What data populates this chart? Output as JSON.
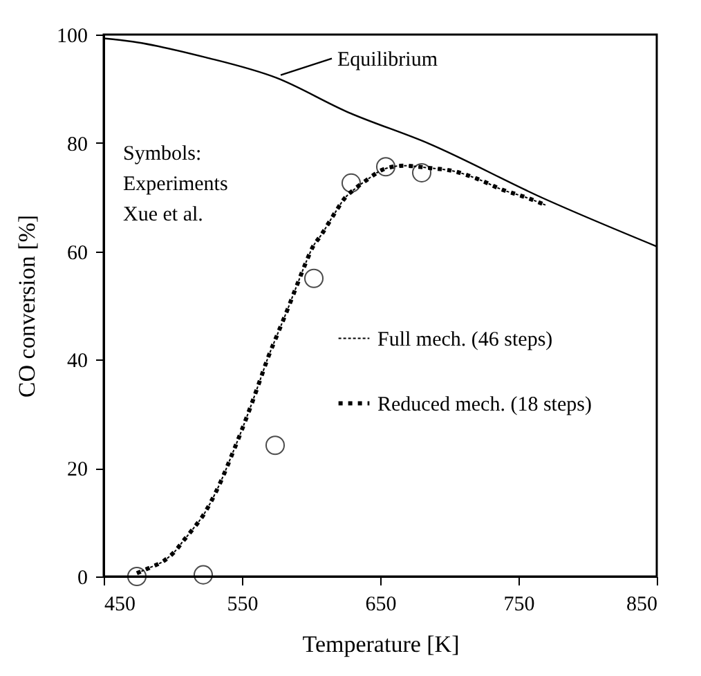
{
  "chart_data": {
    "type": "line",
    "xlabel": "Temperature [K]",
    "ylabel": "CO conversion [%]",
    "xlim": [
      450,
      850
    ],
    "ylim": [
      0,
      100
    ],
    "xticks": [
      450,
      550,
      650,
      750,
      850
    ],
    "yticks": [
      0,
      20,
      40,
      60,
      80,
      100
    ],
    "grid": false,
    "legend": "right",
    "annotations": [
      {
        "text": "Equilibrium",
        "x": 575,
        "y": 92
      },
      "Symbols:\nExperiments\nXue et al."
    ],
    "series": [
      {
        "color": "#000000",
        "line_style": "solid",
        "x": [
          450,
          471,
          523.5,
          575,
          625.5,
          685,
          767,
          850
        ],
        "values": [
          99.3,
          98.7,
          95.8,
          92,
          85.8,
          79.9,
          69.9,
          60.9
        ]
      },
      {
        "name": "Full mech. (46 steps)",
        "color": "#000000",
        "line_style": "dotted",
        "x": [
          474,
          484,
          493,
          501,
          508,
          515,
          522,
          527,
          535,
          542.5,
          550,
          556.5,
          562.5,
          569,
          576,
          583,
          590,
          597,
          601,
          607,
          618,
          624,
          632,
          641,
          652,
          667,
          685,
          703,
          721,
          738,
          756,
          770
        ],
        "values": [
          0.6,
          1.7,
          2.8,
          4.5,
          6.7,
          8.9,
          11.3,
          13.5,
          17.7,
          22.3,
          27.1,
          31.5,
          35.8,
          40.5,
          44.9,
          49.3,
          53.9,
          58.4,
          60.7,
          62.9,
          67.4,
          69.7,
          71.6,
          73.3,
          75.1,
          75.8,
          75.4,
          74.8,
          73.3,
          71.4,
          69.9,
          68.5
        ]
      },
      {
        "name": "Reduced mech. (18 steps)",
        "color": "#000000",
        "line_style": "dashed",
        "x": [
          474,
          484,
          493,
          501,
          508,
          515,
          522,
          527,
          535,
          542.5,
          550,
          556.5,
          562.5,
          569,
          576,
          583,
          590,
          597,
          601,
          607,
          618,
          624,
          632,
          641,
          652,
          667,
          685,
          703,
          721,
          738,
          756,
          770
        ],
        "values": [
          0.6,
          1.7,
          2.8,
          4.5,
          6.7,
          8.9,
          11.3,
          13.5,
          17.7,
          22.3,
          27.1,
          31.5,
          35.8,
          40.5,
          44.9,
          49.3,
          53.9,
          58.4,
          60.7,
          62.9,
          67.4,
          69.7,
          71.6,
          73.3,
          75.1,
          75.8,
          75.4,
          74.8,
          73.3,
          71.4,
          69.9,
          68.5
        ]
      },
      {
        "type": "scatter",
        "color": "#000000",
        "marker": "circle",
        "x": [
          474,
          522,
          574,
          602,
          629,
          654,
          680
        ],
        "values": [
          0,
          0.3,
          24.2,
          55,
          72.6,
          75.6,
          74.5
        ]
      }
    ]
  }
}
